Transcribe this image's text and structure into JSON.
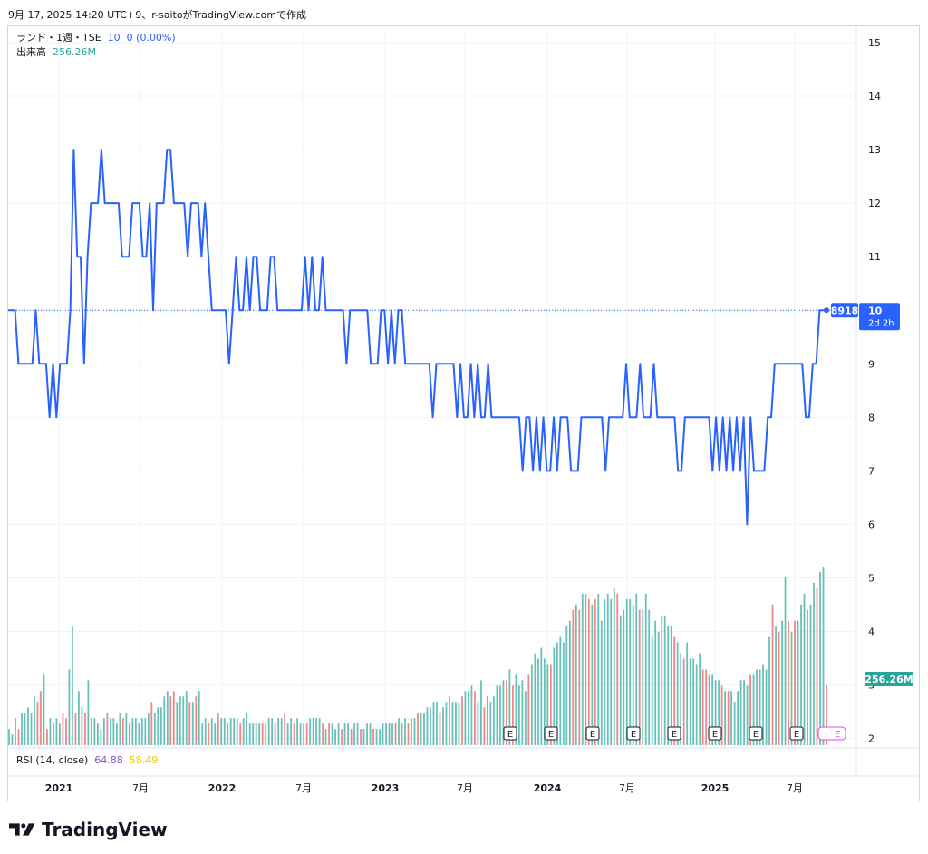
{
  "header": {
    "caption": "9月 17, 2025 14:20 UTC+9、r-saitoがTradingView.comで作成"
  },
  "legend": {
    "symbol": "ランド・1週・TSE",
    "value": "10",
    "change": "0 (0.00%)",
    "volume_label": "出来高",
    "volume_value": "256.26M"
  },
  "rsi_legend": {
    "label": "RSI (14, close)",
    "value1": "64.88",
    "value2": "58.49"
  },
  "price_badge": {
    "left": "8918",
    "value": "10",
    "countdown": "2d 2h"
  },
  "volume_badge": "256.26M",
  "earnings_marker": "E",
  "brand": "TradingView",
  "colors": {
    "line": "#2962ff",
    "vol_up": "#26a69a",
    "vol_down": "#ef5350",
    "grid": "#f0f3fa"
  },
  "chart_data": {
    "type": "line",
    "title": "ランド・1週・TSE",
    "y_ticks": [
      15,
      14,
      13,
      12,
      11,
      10,
      9,
      8,
      7,
      6,
      5,
      4,
      3,
      2
    ],
    "ylim": [
      2,
      15
    ],
    "x_ticks": [
      "2021",
      "7月",
      "2022",
      "7月",
      "2023",
      "7月",
      "2024",
      "7月",
      "2025",
      "7月"
    ],
    "grid": true,
    "last_price": 10,
    "series": [
      {
        "type": "line",
        "values": [
          10,
          10,
          10,
          9,
          9,
          9,
          9,
          9,
          10,
          9,
          9,
          9,
          8,
          9,
          8,
          9,
          9,
          9,
          10,
          13,
          11,
          11,
          9,
          11,
          12,
          12,
          12,
          13,
          12,
          12,
          12,
          12,
          12,
          11,
          11,
          11,
          12,
          12,
          12,
          11,
          11,
          12,
          10,
          12,
          12,
          12,
          13,
          13,
          12,
          12,
          12,
          12,
          11,
          12,
          12,
          12,
          11,
          12,
          11,
          10,
          10,
          10,
          10,
          10,
          9,
          10,
          11,
          10,
          10,
          11,
          10,
          11,
          11,
          10,
          10,
          10,
          11,
          11,
          10,
          10,
          10,
          10,
          10,
          10,
          10,
          10,
          11,
          10,
          11,
          10,
          10,
          11,
          10,
          10,
          10,
          10,
          10,
          10,
          9,
          10,
          10,
          10,
          10,
          10,
          10,
          9,
          9,
          9,
          10,
          10,
          9,
          10,
          9,
          10,
          10,
          9,
          9,
          9,
          9,
          9,
          9,
          9,
          9,
          8,
          9,
          9,
          9,
          9,
          9,
          9,
          8,
          9,
          8,
          8,
          9,
          8,
          9,
          8,
          8,
          9,
          8,
          8,
          8,
          8,
          8,
          8,
          8,
          8,
          8,
          7,
          8,
          8,
          7,
          8,
          7,
          8,
          7,
          7,
          8,
          7,
          8,
          8,
          8,
          7,
          7,
          7,
          8,
          8,
          8,
          8,
          8,
          8,
          8,
          7,
          8,
          8,
          8,
          8,
          8,
          9,
          8,
          8,
          8,
          9,
          8,
          8,
          8,
          9,
          8,
          8,
          8,
          8,
          8,
          8,
          7,
          7,
          8,
          8,
          8,
          8,
          8,
          8,
          8,
          8,
          7,
          8,
          7,
          8,
          7,
          8,
          7,
          8,
          7,
          8,
          6,
          8,
          7,
          7,
          7,
          7,
          8,
          8,
          9,
          9,
          9,
          9,
          9,
          9,
          9,
          9,
          9,
          8,
          8,
          9,
          9,
          10,
          10,
          10
        ]
      },
      {
        "type": "bar",
        "name": "出来高",
        "values": [
          2.3,
          2.2,
          2.5,
          2.3,
          2.6,
          2.6,
          2.7,
          2.6,
          2.9,
          2.8,
          3.0,
          3.3,
          2.3,
          2.5,
          2.4,
          2.5,
          2.4,
          2.6,
          2.5,
          3.4,
          4.2,
          2.6,
          3.0,
          2.7,
          2.6,
          3.2,
          2.5,
          2.5,
          2.4,
          2.3,
          2.5,
          2.6,
          2.5,
          2.5,
          2.4,
          2.6,
          2.5,
          2.6,
          2.4,
          2.5,
          2.5,
          2.4,
          2.5,
          2.5,
          2.6,
          2.8,
          2.6,
          2.7,
          2.7,
          2.9,
          3.0,
          2.9,
          3.0,
          2.8,
          2.9,
          2.9,
          3.0,
          2.8,
          2.8,
          2.9,
          3.0,
          2.4,
          2.5,
          2.4,
          2.5,
          2.4,
          2.6,
          2.5,
          2.5,
          2.4,
          2.5,
          2.5,
          2.5,
          2.4,
          2.5,
          2.6,
          2.4,
          2.4,
          2.4,
          2.4,
          2.4,
          2.4,
          2.5,
          2.5,
          2.4,
          2.5,
          2.5,
          2.6,
          2.4,
          2.5,
          2.4,
          2.5,
          2.4,
          2.4,
          2.4,
          2.5,
          2.5,
          2.5,
          2.5,
          2.4,
          2.3,
          2.4,
          2.4,
          2.3,
          2.4,
          2.3,
          2.4,
          2.4,
          2.3,
          2.4,
          2.4,
          2.3,
          2.3,
          2.4,
          2.4,
          2.3,
          2.3,
          2.3,
          2.4,
          2.4,
          2.4,
          2.4,
          2.4,
          2.5,
          2.4,
          2.5,
          2.4,
          2.5,
          2.5,
          2.6,
          2.6,
          2.6,
          2.7,
          2.7,
          2.8,
          2.8,
          2.6,
          2.7,
          2.8,
          2.9,
          2.8,
          2.8,
          2.8,
          2.9,
          3.0,
          3.0,
          3.1,
          3.0,
          2.8,
          3.2,
          2.7,
          2.9,
          2.8,
          2.9,
          3.1,
          3.1,
          3.2,
          3.2,
          3.4,
          3.1,
          3.3,
          3.1,
          3.2,
          3.0,
          3.3,
          3.5,
          3.7,
          3.6,
          3.8,
          3.6,
          3.5,
          3.5,
          3.8,
          3.9,
          4.0,
          3.9,
          4.2,
          4.3,
          4.5,
          4.6,
          4.5,
          4.8,
          4.8,
          4.7,
          4.6,
          4.7,
          4.8,
          4.3,
          4.7,
          4.8,
          4.7,
          4.9,
          4.8,
          4.4,
          4.5,
          4.7,
          4.7,
          4.6,
          4.8,
          4.5,
          4.5,
          4.8,
          4.5,
          4.0,
          4.3,
          4.1,
          4.4,
          4.4,
          4.2,
          4.2,
          4.0,
          3.9,
          3.7,
          3.6,
          3.9,
          3.6,
          3.6,
          3.5,
          3.7,
          3.4,
          3.4,
          3.3,
          3.3,
          3.2,
          3.2,
          3.1,
          3.0,
          3.0,
          3.0,
          2.8,
          3.0,
          3.2,
          3.2,
          3.1,
          3.3,
          3.3,
          3.4,
          3.4,
          3.5,
          3.4,
          4.0,
          4.6,
          4.2,
          4.1,
          4.3,
          5.1,
          4.3,
          4.1,
          4.3,
          4.3,
          4.6,
          4.8,
          4.5,
          4.6,
          5.0,
          4.9,
          5.2,
          5.3,
          3.1
        ]
      }
    ]
  }
}
